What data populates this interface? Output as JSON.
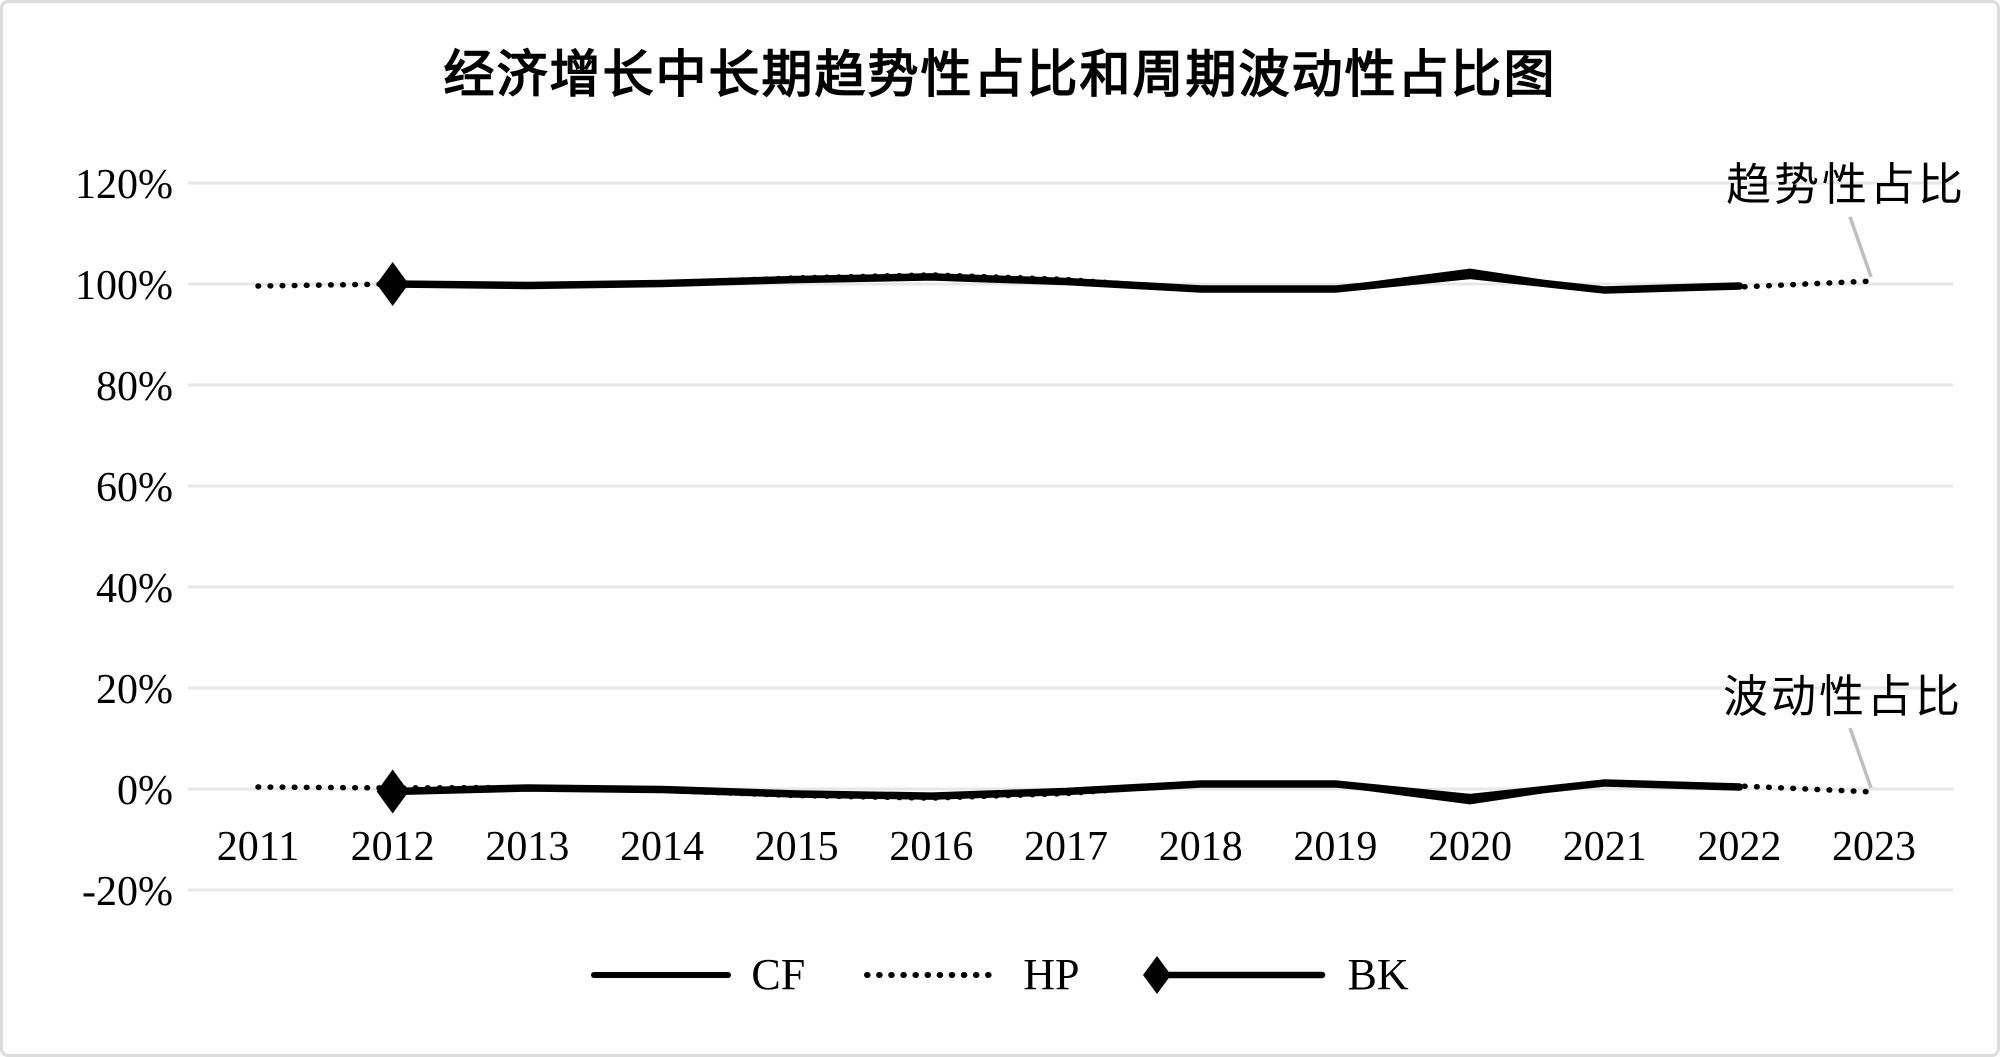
{
  "chart_data": {
    "type": "line",
    "title": "经济增长中长期趋势性占比和周期波动性占比图",
    "x_labels": [
      "2011",
      "2012",
      "2013",
      "2014",
      "2015",
      "2016",
      "2017",
      "2018",
      "2019",
      "2020",
      "2021",
      "2022",
      "2023"
    ],
    "y_axis": {
      "format": "percent",
      "range": [
        -20,
        120
      ],
      "ticks": [
        {
          "label": "120%",
          "value": 120
        },
        {
          "label": "100%",
          "value": 100
        },
        {
          "label": "80%",
          "value": 80
        },
        {
          "label": "60%",
          "value": 60
        },
        {
          "label": "40%",
          "value": 40
        },
        {
          "label": "20%",
          "value": 20
        },
        {
          "label": "0%",
          "value": 0
        },
        {
          "label": "-20%",
          "value": -20
        }
      ]
    },
    "gridlines": "horizontal-light-gray",
    "legend": {
      "position": "bottom",
      "items": [
        "CF",
        "HP",
        "BK"
      ]
    },
    "series": [
      {
        "name": "CF",
        "group": "趋势性占比",
        "style": "solid",
        "values": [
          null,
          100.0,
          99.5,
          99.9,
          100.7,
          101.3,
          100.6,
          99.2,
          99.1,
          102.6,
          98.6,
          99.5,
          null
        ]
      },
      {
        "name": "BK",
        "group": "趋势性占比",
        "style": "thick",
        "marker": "diamond",
        "values": [
          null,
          100.0,
          99.7,
          100.1,
          100.9,
          101.4,
          100.5,
          99.0,
          99.0,
          101.7,
          98.8,
          99.6,
          null
        ]
      },
      {
        "name": "HP",
        "group": "趋势性占比",
        "style": "dotted",
        "values": [
          99.6,
          100.0,
          99.6,
          100.2,
          101.2,
          101.8,
          100.9,
          98.9,
          99.0,
          101.5,
          99.0,
          99.4,
          100.6
        ]
      },
      {
        "name": "CF",
        "group": "波动性占比",
        "style": "solid",
        "values": [
          null,
          -0.3,
          0.3,
          0.0,
          -0.8,
          -1.3,
          -0.6,
          0.8,
          0.9,
          -2.6,
          1.4,
          0.5,
          null
        ]
      },
      {
        "name": "BK",
        "group": "波动性占比",
        "style": "thick",
        "marker": "diamond",
        "values": [
          null,
          -0.5,
          0.2,
          -0.1,
          -1.0,
          -1.4,
          -0.5,
          1.0,
          1.0,
          -1.7,
          1.2,
          0.4,
          null
        ]
      },
      {
        "name": "HP",
        "group": "波动性占比",
        "style": "dotted",
        "values": [
          0.4,
          0.2,
          0.3,
          -0.3,
          -1.3,
          -1.8,
          -0.9,
          1.1,
          1.0,
          -1.5,
          1.0,
          0.6,
          -0.6
        ]
      }
    ],
    "annotations": [
      {
        "text": "趋势性占比",
        "anchor_series": 2,
        "anchor_point": 12
      },
      {
        "text": "波动性占比",
        "anchor_series": 5,
        "anchor_point": 12
      }
    ],
    "colors": {
      "line": "#000000",
      "gridline": "#e7e7e7",
      "leader": "#bfbfbf",
      "text": "#000000",
      "background": "#ffffff"
    }
  }
}
